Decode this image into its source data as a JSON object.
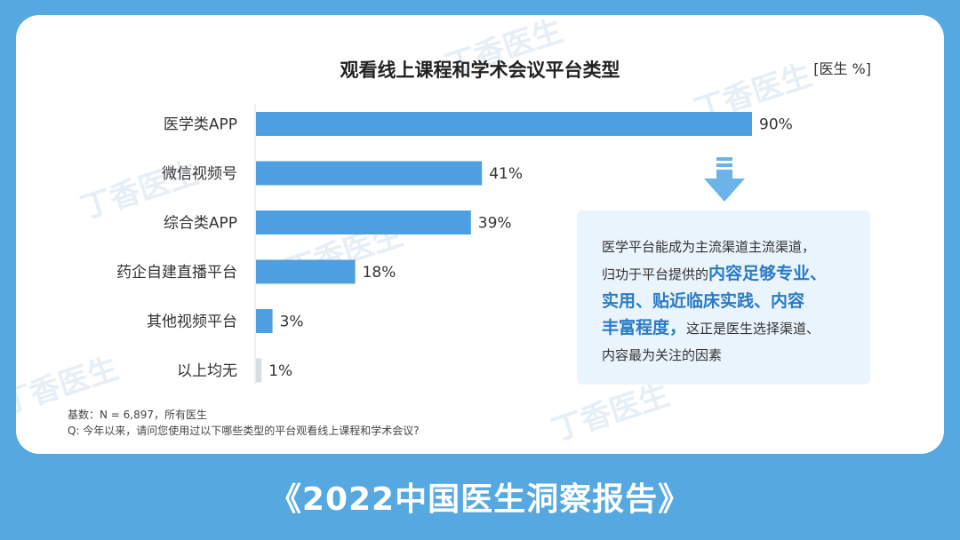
{
  "chart_data": {
    "type": "bar",
    "orientation": "horizontal",
    "title": "观看线上课程和学术会议平台类型",
    "unit": "[医生 %]",
    "categories": [
      "医学类APP",
      "微信视频号",
      "综合类APP",
      "药企自建直播平台",
      "其他视频平台",
      "以上均无"
    ],
    "values": [
      90,
      41,
      39,
      18,
      3,
      1
    ],
    "value_labels": [
      "90%",
      "41%",
      "39%",
      "18%",
      "3%",
      "1%"
    ],
    "xlim": [
      0,
      100
    ],
    "grid": false,
    "legend": "none",
    "colors": {
      "bar": "#4d9fe0",
      "bar_small": "#d6dde4"
    }
  },
  "note": {
    "line1": "医学平台能成为主流渠道主流渠道，",
    "line2_pre": "归功于平台提供的",
    "hl1": "内容足够专业、",
    "hl2": "实用、贴近临床实践、内容",
    "hl3": "丰富程度，",
    "line4_post": "这正是医生选择渠道、",
    "line5": "内容最为关注的因素"
  },
  "footnote": {
    "base": "基数：N = 6,897，所有医生",
    "question": "Q: 今年以来，请问您使用过以下哪些类型的平台观看线上课程和学术会议?"
  },
  "banner": "《2022中国医生洞察报告》",
  "watermark": "丁香医生",
  "icons": {
    "arrow": "down-arrow-icon"
  },
  "colors": {
    "background": "#56a8e0",
    "card": "#ffffff",
    "note_bg": "#eaf4fc",
    "highlight": "#2a7bc6"
  }
}
